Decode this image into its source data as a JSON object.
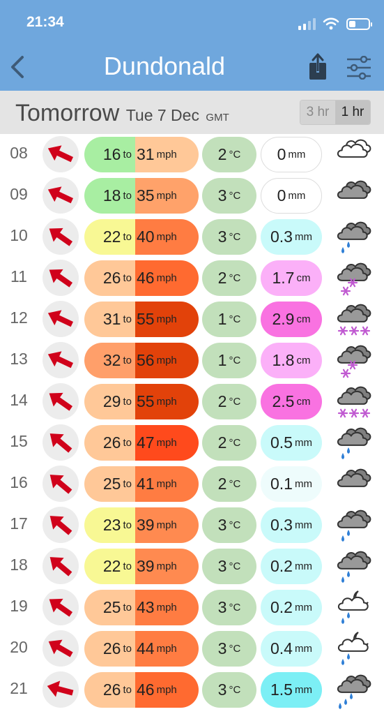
{
  "status": {
    "time": "21:34"
  },
  "nav": {
    "title": "Dundonald",
    "back_icon": "chevron-left-icon",
    "share_icon": "share-icon",
    "settings_icon": "sliders-icon"
  },
  "day": {
    "label": "Tomorrow",
    "date": "Tue 7 Dec",
    "tz": "GMT"
  },
  "toggle": {
    "three_hr": "3 hr",
    "one_hr": "1 hr",
    "selected": "1 hr"
  },
  "units": {
    "wind": "mph",
    "to": "to",
    "temp": "°C"
  },
  "colors": {
    "header_bg": "#6fa7dd",
    "arrow": "#d0021b",
    "temp_bg": "#c2e0bb"
  },
  "rows": [
    {
      "hour": "08",
      "dir_deg": 115,
      "wind_min": "16",
      "wind_max": "31",
      "min_color": "#a8eea2",
      "max_color": "#ffc898",
      "temp": "2",
      "rain": "0",
      "rain_unit": "mm",
      "rain_color": "#ffffff",
      "weather": "cloud-icon"
    },
    {
      "hour": "09",
      "dir_deg": 115,
      "wind_min": "18",
      "wind_max": "35",
      "min_color": "#a8eea2",
      "max_color": "#ffa26a",
      "temp": "3",
      "rain": "0",
      "rain_unit": "mm",
      "rain_color": "#ffffff",
      "weather": "dark-cloud-icon"
    },
    {
      "hour": "10",
      "dir_deg": 125,
      "wind_min": "22",
      "wind_max": "40",
      "min_color": "#f8f894",
      "max_color": "#ff7c42",
      "temp": "3",
      "rain": "0.3",
      "rain_unit": "mm",
      "rain_color": "#c9fafa",
      "weather": "rain-cloud-icon"
    },
    {
      "hour": "11",
      "dir_deg": 125,
      "wind_min": "26",
      "wind_max": "46",
      "min_color": "#ffc898",
      "max_color": "#ff6a30",
      "temp": "2",
      "rain": "1.7",
      "rain_unit": "cm",
      "rain_color": "#fbb0f8",
      "weather": "snow-cloud-icon"
    },
    {
      "hour": "12",
      "dir_deg": 115,
      "wind_min": "31",
      "wind_max": "55",
      "min_color": "#ffc898",
      "max_color": "#e2420a",
      "temp": "1",
      "rain": "2.9",
      "rain_unit": "cm",
      "rain_color": "#f972e1",
      "weather": "heavy-snow-cloud-icon"
    },
    {
      "hour": "13",
      "dir_deg": 115,
      "wind_min": "32",
      "wind_max": "56",
      "min_color": "#ff9f6a",
      "max_color": "#e2420a",
      "temp": "1",
      "rain": "1.8",
      "rain_unit": "cm",
      "rain_color": "#fbb0f8",
      "weather": "snow-cloud-icon"
    },
    {
      "hour": "14",
      "dir_deg": 125,
      "wind_min": "29",
      "wind_max": "55",
      "min_color": "#ffc898",
      "max_color": "#e2420a",
      "temp": "2",
      "rain": "2.5",
      "rain_unit": "cm",
      "rain_color": "#f972e1",
      "weather": "heavy-snow-cloud-icon"
    },
    {
      "hour": "15",
      "dir_deg": 130,
      "wind_min": "26",
      "wind_max": "47",
      "min_color": "#ffc898",
      "max_color": "#ff4a1c",
      "temp": "2",
      "rain": "0.5",
      "rain_unit": "mm",
      "rain_color": "#c9fafa",
      "weather": "rain-cloud-icon"
    },
    {
      "hour": "16",
      "dir_deg": 130,
      "wind_min": "25",
      "wind_max": "41",
      "min_color": "#ffc898",
      "max_color": "#ff7c42",
      "temp": "2",
      "rain": "0.1",
      "rain_unit": "mm",
      "rain_color": "#eefcfc",
      "weather": "dark-cloud-icon"
    },
    {
      "hour": "17",
      "dir_deg": 130,
      "wind_min": "23",
      "wind_max": "39",
      "min_color": "#f8f894",
      "max_color": "#ff8a50",
      "temp": "3",
      "rain": "0.3",
      "rain_unit": "mm",
      "rain_color": "#c9fafa",
      "weather": "rain-cloud-icon"
    },
    {
      "hour": "18",
      "dir_deg": 130,
      "wind_min": "22",
      "wind_max": "39",
      "min_color": "#f8f894",
      "max_color": "#ff8a50",
      "temp": "3",
      "rain": "0.2",
      "rain_unit": "mm",
      "rain_color": "#c9fafa",
      "weather": "rain-cloud-icon"
    },
    {
      "hour": "19",
      "dir_deg": 125,
      "wind_min": "25",
      "wind_max": "43",
      "min_color": "#ffc898",
      "max_color": "#ff7c42",
      "temp": "3",
      "rain": "0.2",
      "rain_unit": "mm",
      "rain_color": "#c9fafa",
      "weather": "night-rain-cloud-icon"
    },
    {
      "hour": "20",
      "dir_deg": 120,
      "wind_min": "26",
      "wind_max": "44",
      "min_color": "#ffc898",
      "max_color": "#ff7c42",
      "temp": "3",
      "rain": "0.4",
      "rain_unit": "mm",
      "rain_color": "#c9fafa",
      "weather": "night-rain-cloud-icon"
    },
    {
      "hour": "21",
      "dir_deg": 105,
      "wind_min": "26",
      "wind_max": "46",
      "min_color": "#ffc898",
      "max_color": "#ff6a30",
      "temp": "3",
      "rain": "1.5",
      "rain_unit": "mm",
      "rain_color": "#7ceff5",
      "weather": "heavy-rain-cloud-icon"
    }
  ]
}
